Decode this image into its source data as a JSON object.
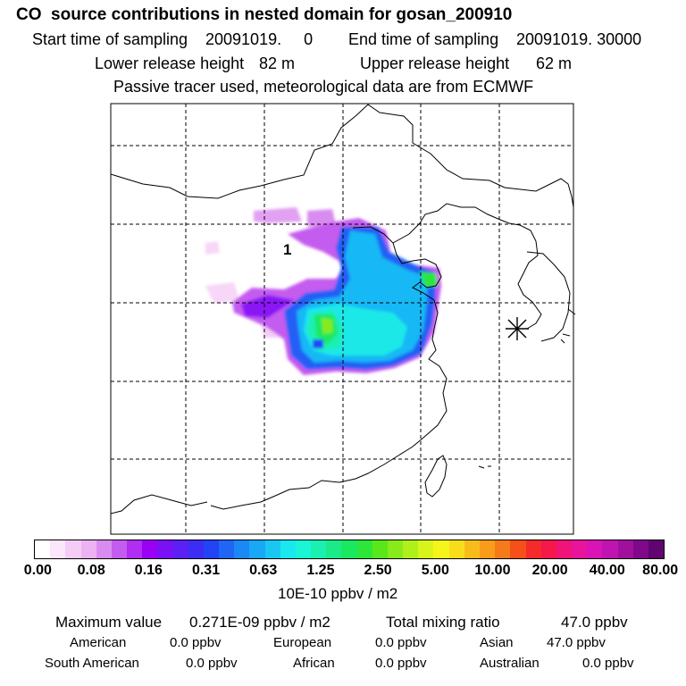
{
  "header": {
    "title": "CO  source contributions in nested domain for gosan_200910",
    "start_label": "Start time of sampling",
    "start_value": "20091019.     0",
    "end_label": "End time of sampling",
    "end_value": "20091019. 30000",
    "lower_label": "Lower release height",
    "lower_value": "82 m",
    "upper_label": "Upper release height",
    "upper_value": "62 m",
    "tracer_note": "Passive tracer used, meteorological data are from ECMWF"
  },
  "map": {
    "region_marker_label": "1",
    "station_marker": "asterisk-station-icon",
    "gridlines": "dashed"
  },
  "colorbar": {
    "unit_label": "10E-10 ppbv / m2",
    "ticks": [
      "0.00",
      "0.08",
      "0.16",
      "0.31",
      "0.63",
      "1.25",
      "2.50",
      "5.00",
      "10.00",
      "20.00",
      "40.00",
      "80.00"
    ],
    "colors": [
      "#ffffff",
      "#fbe6fb",
      "#f4ccf6",
      "#edb2f2",
      "#d98cf0",
      "#c55cf0",
      "#b02df2",
      "#9900f5",
      "#7a10f5",
      "#5a20f5",
      "#3d2cf5",
      "#2244f5",
      "#1f66f5",
      "#1a88f5",
      "#19a8f5",
      "#19c8f2",
      "#1ae8f0",
      "#1af5d6",
      "#1af0b0",
      "#1aeb88",
      "#1ae860",
      "#2ee63a",
      "#5ae61a",
      "#88ea1a",
      "#b0f01a",
      "#d8f51a",
      "#f5f51a",
      "#f8de1a",
      "#f8bc1a",
      "#f89c1a",
      "#f57a1a",
      "#f5501a",
      "#f52a2a",
      "#f5184a",
      "#f01478",
      "#e8149c",
      "#d815b4",
      "#c014b0",
      "#a0109c",
      "#80088a",
      "#600470"
    ]
  },
  "summary": {
    "max_label": "Maximum value",
    "max_value": "0.271E-09 ppbv / m2",
    "total_label": "Total mixing ratio",
    "total_value": "47.0 ppbv",
    "american_label": "American",
    "american_value": "0.0 ppbv",
    "european_label": "European",
    "european_value": "0.0 ppbv",
    "asian_label": "Asian",
    "asian_value": "47.0 ppbv",
    "south_american_label": "South American",
    "south_american_value": "0.0 ppbv",
    "african_label": "African",
    "african_value": "0.0 ppbv",
    "australian_label": "Australian",
    "australian_value": "0.0 ppbv"
  }
}
